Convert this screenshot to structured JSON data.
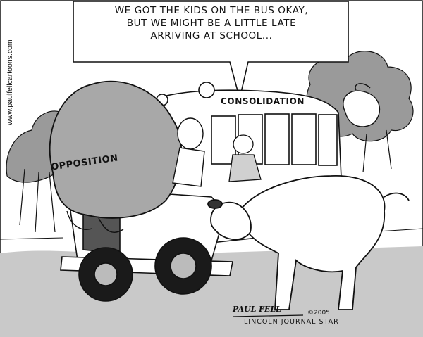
{
  "cartoon": {
    "caption_lines": [
      "WE GOT THE KIDS ON THE BUS OKAY,",
      "BUT WE MIGHT BE A LITTLE LATE",
      "ARRIVING AT SCHOOL..."
    ],
    "side_url": "www.paulfellcartoons.com",
    "labels": {
      "opposition": "OPPOSITION",
      "consolidation": "CONSOLIDATION"
    },
    "signature": "PAUL FELL",
    "copyright": "©2005",
    "publisher": "LINCOLN JOURNAL STAR"
  },
  "colors": {
    "ink": "#111111",
    "paper": "#ffffff",
    "shade": "#8a8a8a"
  }
}
